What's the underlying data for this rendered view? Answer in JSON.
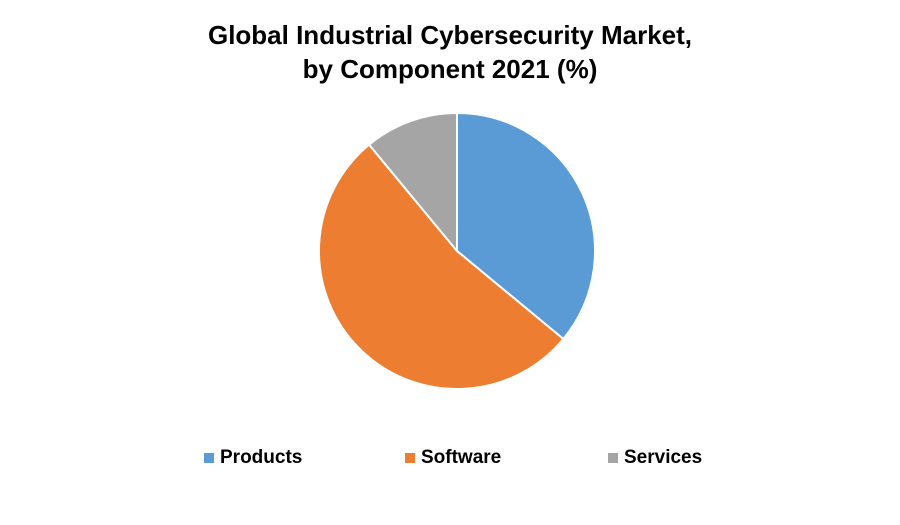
{
  "chart_data": {
    "type": "pie",
    "title_lines": [
      "Global Industrial Cybersecurity Market,",
      "by Component 2021 (%)"
    ],
    "start_angle_deg": 0,
    "legend_position": "bottom",
    "slices": [
      {
        "label": "Products",
        "value": 36,
        "color": "#5B9BD5"
      },
      {
        "label": "Software",
        "value": 53,
        "color": "#ED7D31"
      },
      {
        "label": "Services",
        "value": 11,
        "color": "#A5A5A5"
      }
    ]
  }
}
